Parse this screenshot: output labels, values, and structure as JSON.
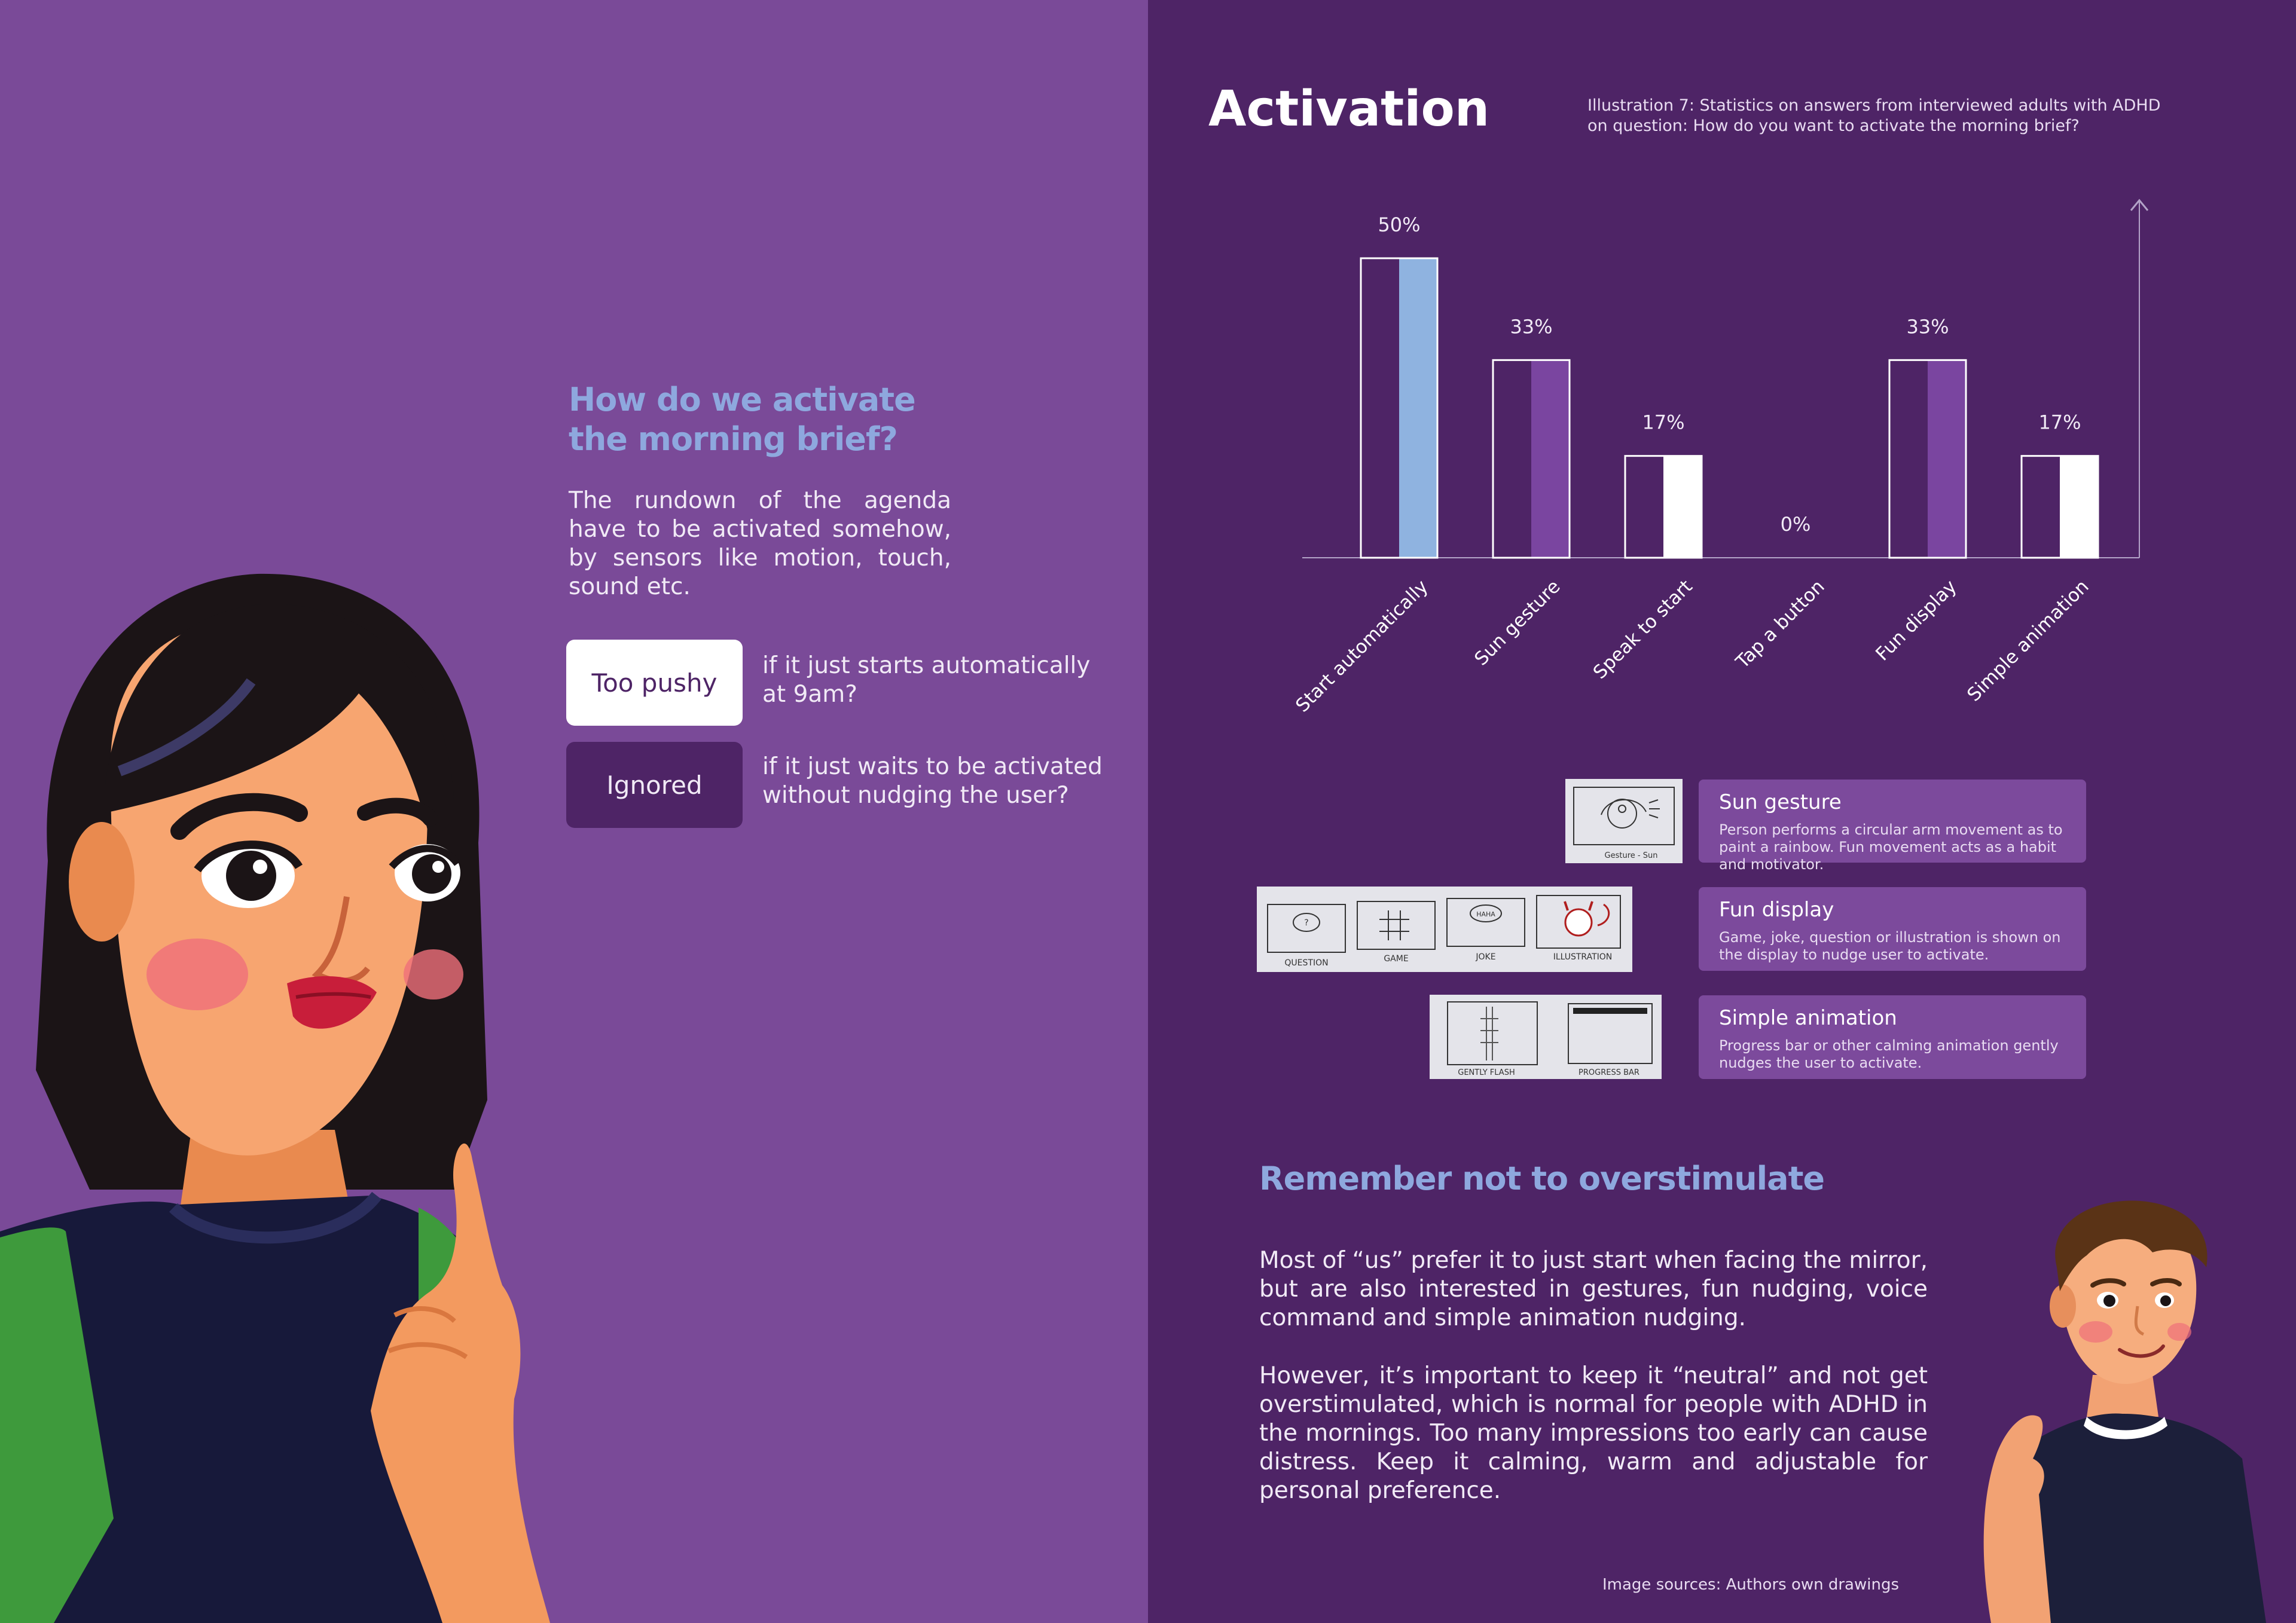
{
  "left": {
    "heading": "How do we activate the morning brief?",
    "intro": "The rundown of the agenda have to be activated somehow, by sensors like motion, touch, sound etc.",
    "options": [
      {
        "label": "Too pushy",
        "desc": "if it just starts automatically at 9am?"
      },
      {
        "label": "Ignored",
        "desc": "if it just waits to be activated without nudging the user?"
      }
    ]
  },
  "right": {
    "title": "Activation",
    "caption": "Illustration 7: Statistics on answers from interviewed adults with ADHD on question: How do you want to activate the morning brief?",
    "cards": [
      {
        "title": "Sun gesture",
        "desc": "Person performs a circular arm movement as to paint a rainbow. Fun movement acts as a habit and motivator."
      },
      {
        "title": "Fun display",
        "desc": "Game, joke, question or illustration is shown on the display to nudge user to activate."
      },
      {
        "title": "Simple animation",
        "desc": "Progress bar or other calming animation gently nudges the user to activate."
      }
    ],
    "sketch_labels": {
      "sun": "Gesture - Sun",
      "fun": [
        "QUESTION",
        "GAME",
        "JOKE",
        "ILLUSTRATION"
      ],
      "joke_bubble": "HAHA",
      "anim": [
        "GENTLY FLASH",
        "PROGRESS BAR"
      ]
    },
    "reminder_heading": "Remember not to overstimulate",
    "reminder_p1": "Most of “us” prefer it to just start when facing the mirror, but are also interested in gestures, fun nudging, voice command and simple animation nudging.",
    "reminder_p2": "However, it’s important to keep it “neutral” and not get overstimulated, which is normal for people with ADHD in the mornings. Too many impressions too early can cause distress. Keep it calming, warm and adjustable for personal preference.",
    "source": "Image sources: Authors own drawings"
  },
  "chart_data": {
    "type": "bar",
    "categories": [
      "Start automatically",
      "Sun gesture",
      "Speak to start",
      "Tap a button",
      "Fun display",
      "Simple animation"
    ],
    "values": [
      50,
      33,
      17,
      0,
      33,
      17
    ],
    "value_labels": [
      "50%",
      "33%",
      "17%",
      "0%",
      "33%",
      "17%"
    ],
    "fill_colors": [
      "#8fb3e0",
      "#7a45a0",
      "#ffffff",
      "#ffffff",
      "#7a45a0",
      "#ffffff"
    ],
    "ylim": [
      0,
      50
    ],
    "grid": false,
    "legend": "none"
  },
  "colors": {
    "left_bg": "#7a4a98",
    "right_bg": "#4e2466",
    "accent_blue": "#8ea8de",
    "card_bg": "#7c4a9c",
    "pill_dark": "#4e2466"
  }
}
